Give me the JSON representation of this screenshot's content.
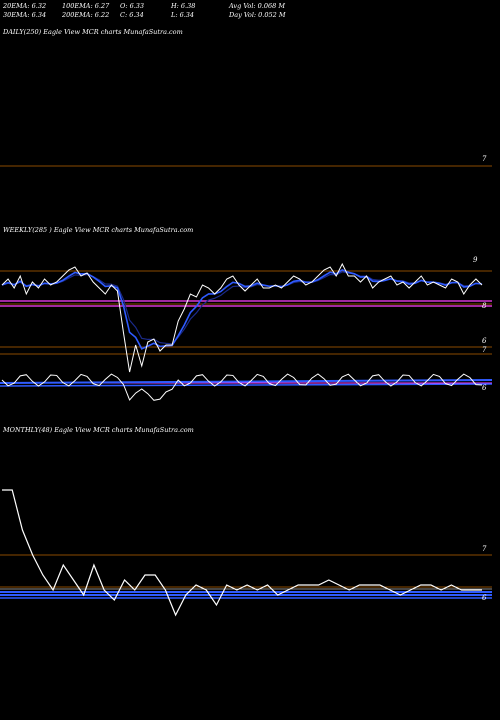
{
  "header": {
    "ema20": "20EMA: 6.32",
    "ema100": "100EMA: 6.27",
    "open": "O: 6.33",
    "high": "H: 6.38",
    "avgvol": "Avg Vol: 0.068 M",
    "ema30": "30EMA: 6.34",
    "ema200": "200EMA: 6.22",
    "close": "C: 6.34",
    "low": "L: 6.34",
    "dayvol": "Day Vol: 0.052 M"
  },
  "panels": {
    "daily_title": "DAILY(250) Eagle View MCR charts MunafaSutra.com",
    "weekly_title": "WEEKLY(285 ) Eagle View MCR charts MunafaSutra.com",
    "monthly_title": "MONTHLY(48) Eagle View MCR charts MunafaSutra.com"
  },
  "colors": {
    "price": "#ffffff",
    "ema_blue": "#2f5bff",
    "ema_dark": "#1a2a8a",
    "orange_level": "#8a4a00",
    "magenta_level": "#ff44ff",
    "grey_band": "#8a8a8a"
  },
  "chart_data": [
    {
      "type": "line",
      "name_panel": "daily",
      "ylabels": [
        "7"
      ],
      "series": []
    },
    {
      "type": "line",
      "name_panel": "weekly",
      "ylabels": [
        "9",
        "8",
        "6",
        "7",
        "6"
      ],
      "x": [
        0,
        1,
        2,
        3,
        4,
        5,
        6,
        7,
        8,
        9,
        10,
        11,
        12,
        13,
        14,
        15,
        16,
        17,
        18,
        19,
        20,
        21,
        22,
        23,
        24,
        25,
        26,
        27,
        28,
        29,
        30,
        31,
        32,
        33,
        34,
        35,
        36,
        37,
        38,
        39,
        40,
        41,
        42,
        43,
        44,
        45,
        46,
        47,
        48,
        49,
        50,
        51,
        52,
        53,
        54,
        55,
        56,
        57,
        58,
        59,
        60,
        61,
        62,
        63,
        64,
        65,
        66,
        67,
        68,
        69,
        70,
        71,
        72,
        73,
        74,
        75,
        76,
        77,
        78,
        79
      ],
      "series": [
        {
          "values": [
            8.6,
            8.8,
            8.5,
            8.9,
            8.3,
            8.7,
            8.5,
            8.8,
            8.6,
            8.7,
            8.9,
            9.1,
            9.2,
            8.9,
            9.0,
            8.7,
            8.5,
            8.3,
            8.6,
            8.4,
            7.0,
            5.7,
            6.6,
            5.9,
            6.7,
            6.8,
            6.4,
            6.6,
            6.6,
            7.4,
            7.8,
            8.3,
            8.2,
            8.6,
            8.5,
            8.3,
            8.5,
            8.8,
            8.9,
            8.6,
            8.4,
            8.6,
            8.8,
            8.5,
            8.5,
            8.6,
            8.5,
            8.7,
            8.9,
            8.8,
            8.6,
            8.7,
            8.9,
            9.1,
            9.2,
            8.9,
            9.3,
            8.9,
            8.9,
            8.7,
            8.9,
            8.5,
            8.7,
            8.8,
            8.9,
            8.6,
            8.7,
            8.5,
            8.7,
            8.9,
            8.6,
            8.7,
            8.6,
            8.5,
            8.8,
            8.7,
            8.3,
            8.6,
            8.8,
            8.6
          ]
        }
      ]
    },
    {
      "type": "line",
      "name_panel": "monthly",
      "ylabels": [
        "7",
        "6"
      ],
      "x": [
        0,
        1,
        2,
        3,
        4,
        5,
        6,
        7,
        8,
        9,
        10,
        11,
        12,
        13,
        14,
        15,
        16,
        17,
        18,
        19,
        20,
        21,
        22,
        23,
        24,
        25,
        26,
        27,
        28,
        29,
        30,
        31,
        32,
        33,
        34,
        35,
        36,
        37,
        38,
        39,
        40,
        41,
        42,
        43,
        44,
        45,
        46,
        47
      ],
      "series": [
        {
          "values": [
            8.3,
            8.3,
            7.5,
            7.0,
            6.6,
            6.3,
            6.8,
            6.5,
            6.2,
            6.8,
            6.3,
            6.1,
            6.5,
            6.3,
            6.6,
            6.6,
            6.3,
            5.8,
            6.2,
            6.4,
            6.3,
            6.0,
            6.4,
            6.3,
            6.4,
            6.3,
            6.4,
            6.2,
            6.3,
            6.4,
            6.4,
            6.4,
            6.5,
            6.4,
            6.3,
            6.4,
            6.4,
            6.4,
            6.3,
            6.2,
            6.3,
            6.4,
            6.4,
            6.3,
            6.4,
            6.3,
            6.3,
            6.3
          ]
        }
      ]
    }
  ]
}
